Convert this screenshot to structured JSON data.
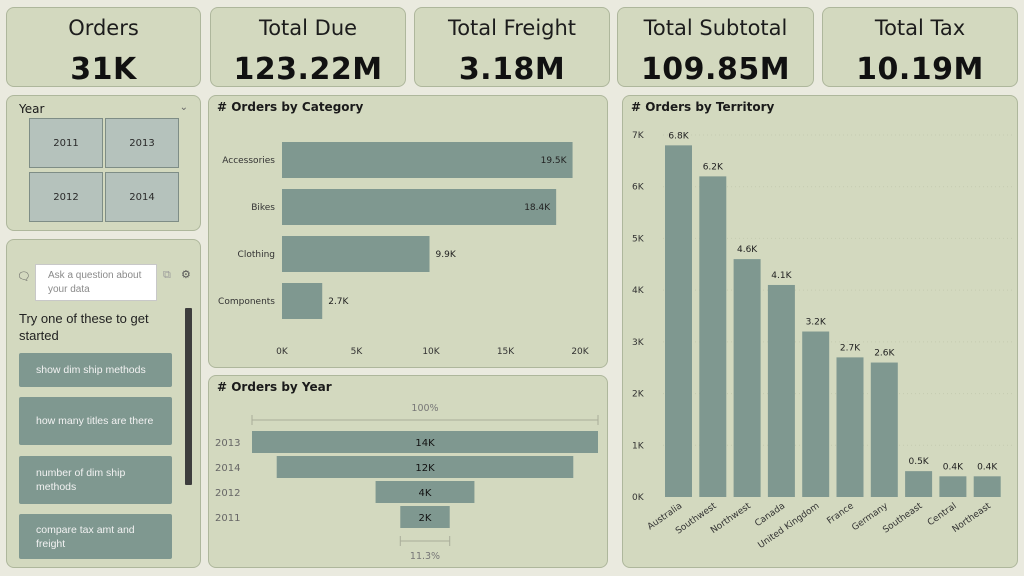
{
  "kpis": [
    {
      "title": "Orders",
      "value": "31K"
    },
    {
      "title": "Total Due",
      "value": "123.22M"
    },
    {
      "title": "Total Freight",
      "value": "3.18M"
    },
    {
      "title": "Total Subtotal",
      "value": "109.85M"
    },
    {
      "title": "Total Tax",
      "value": "10.19M"
    }
  ],
  "year_slicer": {
    "title": "Year",
    "tiles": [
      "2011",
      "2013",
      "2012",
      "2014"
    ]
  },
  "qa": {
    "placeholder": "Ask a question about your data",
    "prompt": "Try one of these to get started",
    "suggestions": [
      "show dim ship methods",
      "how many titles are there",
      "number of dim ship methods",
      "compare tax amt and freight"
    ],
    "icons": [
      "chat-icon",
      "share-icon",
      "gear-icon"
    ]
  },
  "colors": {
    "bar": "#7f9890",
    "panel": "#d3d9bf",
    "background": "#eaeadf"
  },
  "chart_data": [
    {
      "type": "bar",
      "orientation": "horizontal",
      "title": "# Orders by Category",
      "categories": [
        "Accessories",
        "Bikes",
        "Clothing",
        "Components"
      ],
      "values": [
        19500,
        18400,
        9900,
        2700
      ],
      "labels": [
        "19.5K",
        "18.4K",
        "9.9K",
        "2.7K"
      ],
      "xlim": [
        0,
        20000
      ],
      "xticks": [
        "0K",
        "5K",
        "10K",
        "15K",
        "20K"
      ],
      "xlabel": "",
      "ylabel": ""
    },
    {
      "type": "bar",
      "subtype": "funnel",
      "title": "# Orders by Year",
      "categories": [
        "2013",
        "2014",
        "2012",
        "2011"
      ],
      "values": [
        14000,
        12000,
        4000,
        2000
      ],
      "labels": [
        "14K",
        "12K",
        "4K",
        "2K"
      ],
      "top_annotation": "100%",
      "bottom_annotation": "11.3%"
    },
    {
      "type": "bar",
      "orientation": "vertical",
      "title": "# Orders by Territory",
      "categories": [
        "Australia",
        "Southwest",
        "Northwest",
        "Canada",
        "United Kingdom",
        "France",
        "Germany",
        "Southeast",
        "Central",
        "Northeast"
      ],
      "values": [
        6800,
        6200,
        4600,
        4100,
        3200,
        2700,
        2600,
        500,
        400,
        400
      ],
      "labels": [
        "6.8K",
        "6.2K",
        "4.6K",
        "4.1K",
        "3.2K",
        "2.7K",
        "2.6K",
        "0.5K",
        "0.4K",
        "0.4K"
      ],
      "ylim": [
        0,
        7000
      ],
      "yticks": [
        "0K",
        "1K",
        "2K",
        "3K",
        "4K",
        "5K",
        "6K",
        "7K"
      ],
      "xlabel": "",
      "ylabel": ""
    }
  ]
}
